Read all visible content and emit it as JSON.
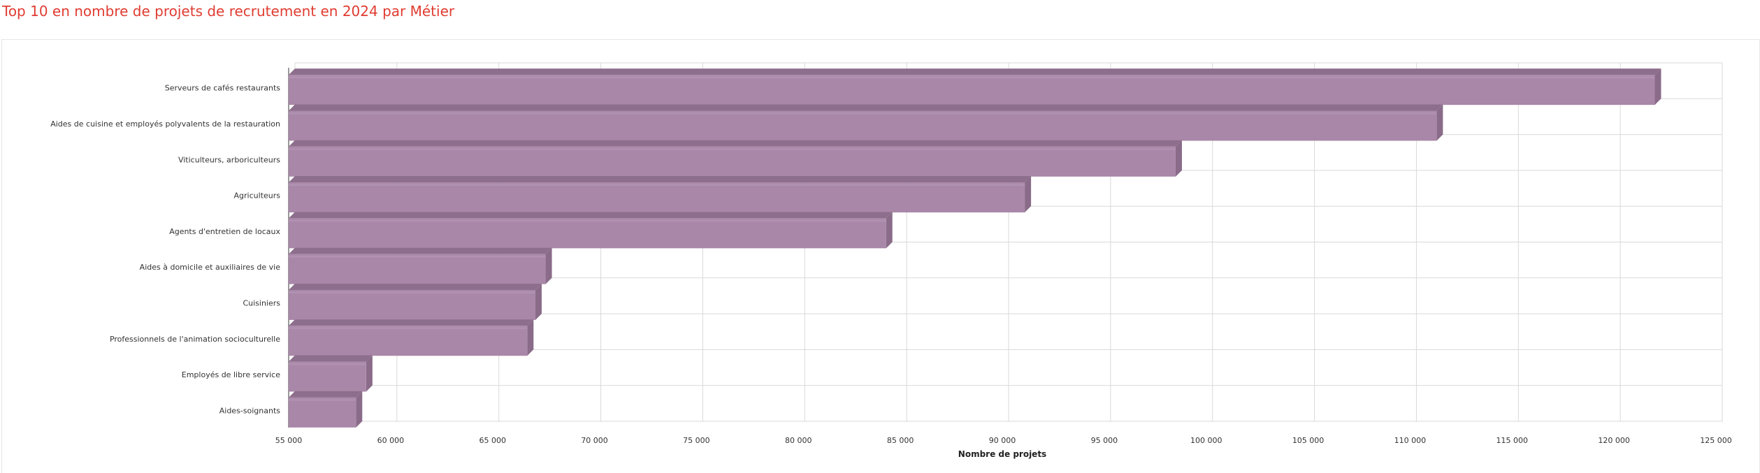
{
  "page": {
    "title": "Top 10 en nombre de projets de recrutement en 2024 par Métier"
  },
  "colors": {
    "title": "#e03c31",
    "bar_front": "#a987a8",
    "bar_top": "#8d6e8c",
    "bar_side": "#8a6b89",
    "grid": "#d9d9d9",
    "tick_label": "#333333"
  },
  "chart_data": {
    "type": "bar",
    "orientation": "horizontal",
    "style": "3d",
    "categories": [
      "Serveurs de cafés restaurants",
      "Aides de cuisine et employés polyvalents de la restauration",
      "Viticulteurs, arboriculteurs",
      "Agriculteurs",
      "Agents d'entretien de locaux",
      "Aides à domicile et auxiliaires de vie",
      "Cuisiniers",
      "Professionnels de l'animation socioculturelle",
      "Employés de libre service",
      "Aides-soignants"
    ],
    "values": [
      122000,
      111300,
      98500,
      91100,
      84300,
      67600,
      67100,
      66700,
      58800,
      58300
    ],
    "xlabel": "Nombre de projets",
    "ylabel": "",
    "xlim": [
      55000,
      125000
    ],
    "xticks": [
      55000,
      60000,
      65000,
      70000,
      75000,
      80000,
      85000,
      90000,
      95000,
      100000,
      105000,
      110000,
      115000,
      120000,
      125000
    ],
    "xtick_labels": [
      "55 000",
      "60 000",
      "65 000",
      "70 000",
      "75 000",
      "80 000",
      "85 000",
      "90 000",
      "95 000",
      "100 000",
      "105 000",
      "110 000",
      "115 000",
      "120 000",
      "125 000"
    ],
    "grid": true,
    "legend": "none"
  }
}
